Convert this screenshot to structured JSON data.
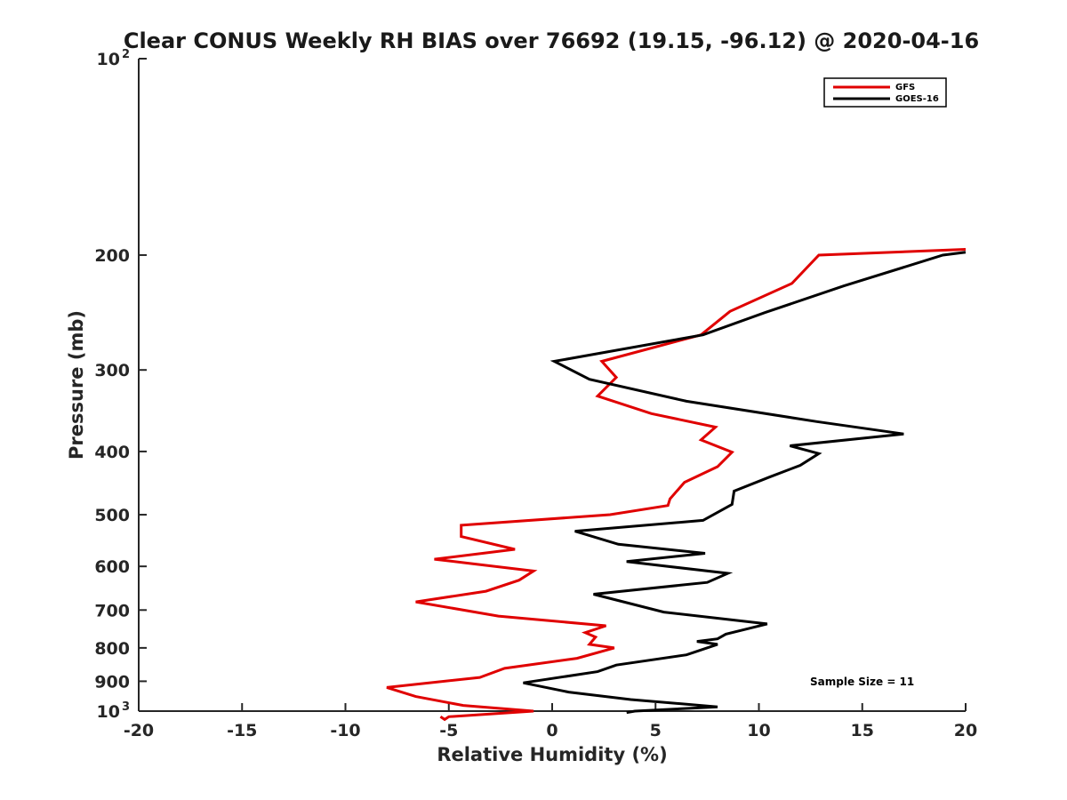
{
  "chart_data": {
    "type": "line",
    "title": "Clear CONUS Weekly RH BIAS over 76692 (19.15, -96.12) @ 2020-04-16",
    "xlabel": "Relative Humidity (%)",
    "ylabel": "Pressure (mb)",
    "xlim": [
      -20,
      20
    ],
    "ylim": [
      100,
      1000
    ],
    "yscale": "log",
    "y_reversed": true,
    "grid": false,
    "x_ticks": [
      -20,
      -15,
      -10,
      -5,
      0,
      5,
      10,
      15,
      20
    ],
    "x_tick_labels": [
      "-20",
      "-15",
      "-10",
      "-5",
      "0",
      "5",
      "10",
      "15",
      "20"
    ],
    "y_ticks": [
      100,
      200,
      300,
      400,
      500,
      600,
      700,
      800,
      900,
      1000
    ],
    "y_tick_labels": [
      {
        "base": "10",
        "exp": "2"
      },
      {
        "base": "200",
        "exp": ""
      },
      {
        "base": "300",
        "exp": ""
      },
      {
        "base": "400",
        "exp": ""
      },
      {
        "base": "500",
        "exp": ""
      },
      {
        "base": "600",
        "exp": ""
      },
      {
        "base": "700",
        "exp": ""
      },
      {
        "base": "800",
        "exp": ""
      },
      {
        "base": "900",
        "exp": ""
      },
      {
        "base": "10",
        "exp": "3"
      }
    ],
    "legend_position": "top-right",
    "annotation": "Sample Size = 11",
    "series": [
      {
        "name": "GFS",
        "color": "#e00000",
        "points": [
          [
            20,
            196
          ],
          [
            12.9,
            200
          ],
          [
            11.6,
            221
          ],
          [
            8.6,
            244
          ],
          [
            7.2,
            265
          ],
          [
            2.4,
            291
          ],
          [
            3.1,
            308
          ],
          [
            2.2,
            329
          ],
          [
            4.8,
            350
          ],
          [
            7.9,
            367
          ],
          [
            7.2,
            384
          ],
          [
            8.7,
            401
          ],
          [
            8.0,
            422
          ],
          [
            6.4,
            446
          ],
          [
            5.7,
            473
          ],
          [
            5.6,
            484
          ],
          [
            2.8,
            500
          ],
          [
            -4.4,
            519
          ],
          [
            -4.4,
            540
          ],
          [
            -1.8,
            565
          ],
          [
            -5.7,
            585
          ],
          [
            -0.9,
            610
          ],
          [
            -1.6,
            630
          ],
          [
            -3.2,
            655
          ],
          [
            -6.6,
            680
          ],
          [
            -2.6,
            715
          ],
          [
            2.6,
            740
          ],
          [
            1.6,
            758
          ],
          [
            2.1,
            770
          ],
          [
            1.8,
            790
          ],
          [
            3.0,
            800
          ],
          [
            1.2,
            830
          ],
          [
            -2.3,
            860
          ],
          [
            -3.5,
            888
          ],
          [
            -8.0,
            920
          ],
          [
            -6.6,
            950
          ],
          [
            -4.3,
            980
          ],
          [
            -0.9,
            1000
          ],
          [
            -5.0,
            1020
          ],
          [
            -5.2,
            1030
          ],
          [
            -5.4,
            1020
          ]
        ]
      },
      {
        "name": "GOES-16",
        "color": "#000000",
        "points": [
          [
            20,
            198
          ],
          [
            18.9,
            200
          ],
          [
            14.1,
            223
          ],
          [
            10.3,
            245
          ],
          [
            7.3,
            265
          ],
          [
            0.1,
            291
          ],
          [
            1.8,
            310
          ],
          [
            6.5,
            335
          ],
          [
            12.8,
            360
          ],
          [
            17.0,
            376
          ],
          [
            11.5,
            392
          ],
          [
            12.9,
            403
          ],
          [
            12.0,
            420
          ],
          [
            10.5,
            438
          ],
          [
            8.8,
            460
          ],
          [
            8.7,
            482
          ],
          [
            7.3,
            510
          ],
          [
            1.1,
            530
          ],
          [
            3.2,
            555
          ],
          [
            7.4,
            573
          ],
          [
            3.6,
            590
          ],
          [
            8.5,
            615
          ],
          [
            7.5,
            635
          ],
          [
            2.0,
            662
          ],
          [
            5.4,
            705
          ],
          [
            10.4,
            735
          ],
          [
            8.4,
            762
          ],
          [
            8.0,
            775
          ],
          [
            7.0,
            782
          ],
          [
            8.0,
            790
          ],
          [
            6.5,
            820
          ],
          [
            3.1,
            850
          ],
          [
            2.2,
            870
          ],
          [
            -1.4,
            905
          ],
          [
            0.8,
            935
          ],
          [
            3.8,
            960
          ],
          [
            8.0,
            985
          ],
          [
            4.0,
            1000
          ],
          [
            3.6,
            1005
          ]
        ]
      }
    ]
  }
}
